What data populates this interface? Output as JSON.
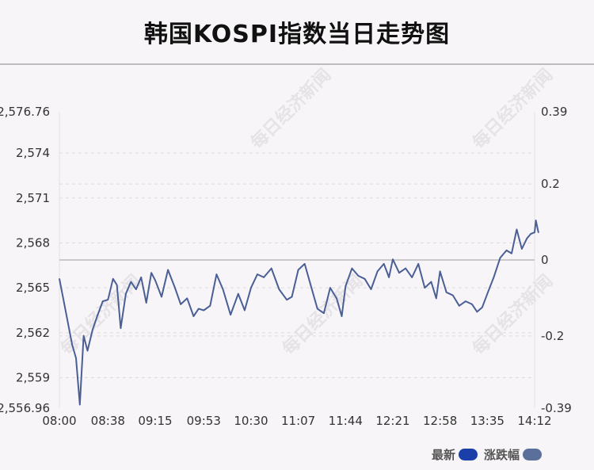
{
  "title": "韩国KOSPI指数当日走势图",
  "watermark": "每日经济新闻",
  "legend": [
    {
      "label": "最新",
      "color": "#1a3fa8"
    },
    {
      "label": "涨跌幅",
      "color": "#5a6f9a"
    }
  ],
  "colors": {
    "line": "#4a5f95",
    "grid": "#dddddd",
    "zero_line": "#bbbbbb"
  },
  "chart_data": {
    "type": "line",
    "x_ticks": [
      "08:00",
      "08:38",
      "09:15",
      "09:53",
      "10:30",
      "11:07",
      "11:44",
      "12:21",
      "12:58",
      "13:35",
      "14:12"
    ],
    "y_left_ticks": [
      "2,576.76",
      "2,574",
      "2,571",
      "2,568",
      "2,565",
      "2,562",
      "2,559",
      "2,556.96"
    ],
    "y_left_tick_values": [
      2576.76,
      2574,
      2571,
      2568,
      2565,
      2562,
      2559,
      2556.96
    ],
    "y_right_ticks": [
      "0.39",
      "0.2",
      "0",
      "-0.2",
      "-0.39"
    ],
    "y_right_tick_values": [
      0.39,
      0.2,
      0,
      -0.2,
      -0.39
    ],
    "ylim_left": [
      2556.96,
      2576.76
    ],
    "ylim_right": [
      -0.39,
      0.39
    ],
    "prev_close": 2566.86,
    "grid": true,
    "series": [
      {
        "x": [
          "08:00",
          "08:05",
          "08:10",
          "08:13",
          "08:16",
          "08:19",
          "08:22",
          "08:26",
          "08:30",
          "08:34",
          "08:38",
          "08:42",
          "08:45",
          "08:48",
          "08:52",
          "08:56",
          "09:00",
          "09:04",
          "09:08",
          "09:12",
          "09:15",
          "09:20",
          "09:25",
          "09:30",
          "09:35",
          "09:40",
          "09:45",
          "09:49",
          "09:53",
          "09:58",
          "10:03",
          "10:08",
          "10:14",
          "10:20",
          "10:25",
          "10:30",
          "10:35",
          "10:40",
          "10:46",
          "10:52",
          "10:58",
          "11:02",
          "11:07",
          "11:12",
          "11:17",
          "11:22",
          "11:27",
          "11:32",
          "11:37",
          "11:41",
          "11:44",
          "11:49",
          "11:54",
          "11:59",
          "12:04",
          "12:09",
          "12:14",
          "12:18",
          "12:21",
          "12:26",
          "12:31",
          "12:36",
          "12:41",
          "12:46",
          "12:51",
          "12:55",
          "12:58",
          "13:03",
          "13:08",
          "13:13",
          "13:18",
          "13:23",
          "13:27",
          "13:31",
          "13:35",
          "13:40",
          "13:45",
          "13:50",
          "13:54",
          "13:58",
          "14:02",
          "14:06",
          "14:09",
          "14:12",
          "14:13",
          "14:15"
        ],
        "values": [
          2565.6,
          2563.4,
          2561.2,
          2560.3,
          2557.2,
          2561.8,
          2560.8,
          2562.2,
          2563.2,
          2564.1,
          2564.2,
          2565.6,
          2565.2,
          2562.3,
          2564.6,
          2565.4,
          2564.9,
          2565.7,
          2564.0,
          2566.0,
          2565.5,
          2564.4,
          2566.2,
          2565.1,
          2563.9,
          2564.3,
          2563.1,
          2563.6,
          2563.5,
          2563.8,
          2565.9,
          2564.9,
          2563.2,
          2564.6,
          2563.5,
          2565.0,
          2565.9,
          2565.7,
          2566.3,
          2564.9,
          2564.2,
          2564.4,
          2566.2,
          2566.6,
          2565.1,
          2563.6,
          2563.3,
          2565.0,
          2564.3,
          2563.1,
          2565.1,
          2566.3,
          2565.8,
          2565.6,
          2564.9,
          2566.1,
          2566.6,
          2565.7,
          2566.9,
          2566.0,
          2566.3,
          2565.7,
          2566.6,
          2565.0,
          2565.4,
          2564.3,
          2566.1,
          2564.7,
          2564.5,
          2563.8,
          2564.1,
          2563.9,
          2563.4,
          2563.7,
          2564.6,
          2565.7,
          2567.0,
          2567.5,
          2567.3,
          2568.9,
          2567.6,
          2568.3,
          2568.6,
          2568.7,
          2569.5,
          2568.7
        ]
      }
    ]
  }
}
